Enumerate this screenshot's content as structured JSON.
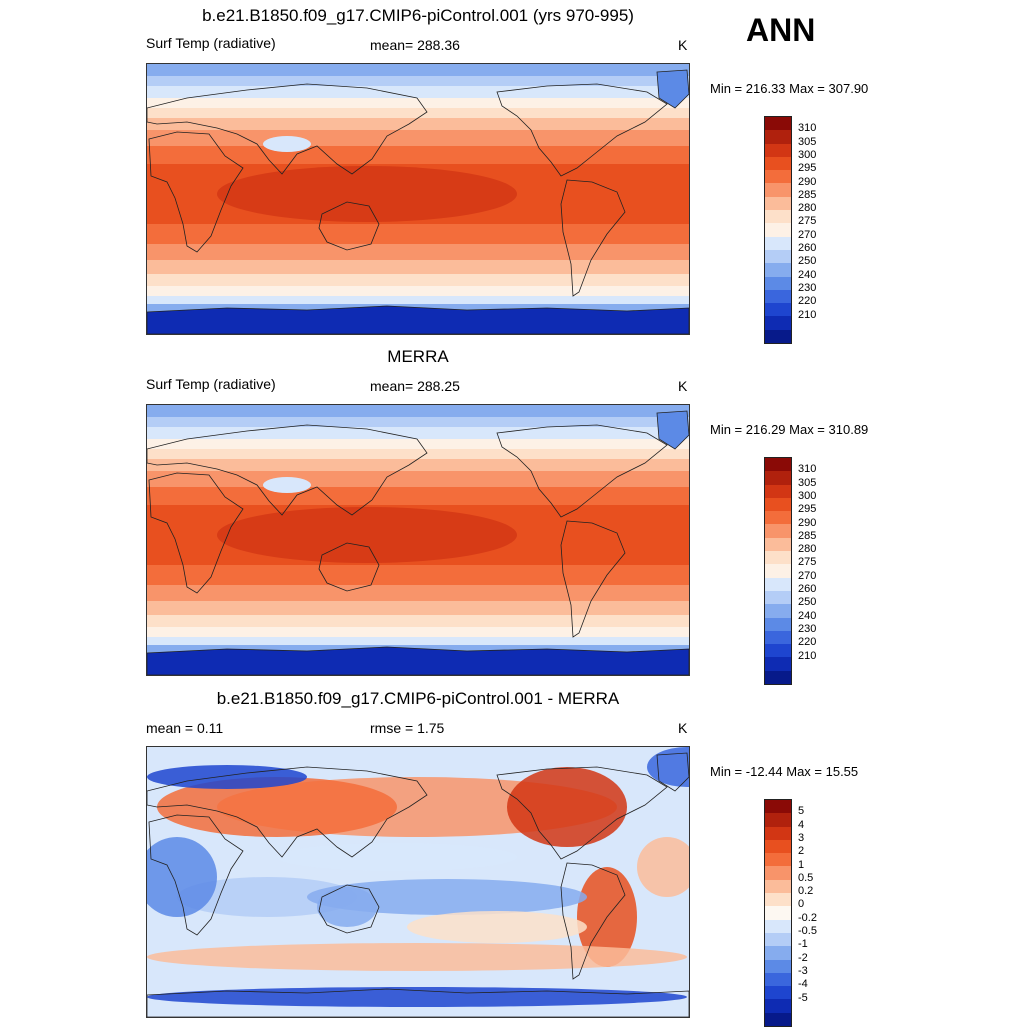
{
  "season": "ANN",
  "panels": [
    {
      "title": "b.e21.B1850.f09_g17.CMIP6-piControl.001 (yrs 970-995)",
      "left_label": "Surf Temp (radiative)",
      "center_label": "mean= 288.36",
      "units": "K",
      "minmax": "Min = 216.33 Max = 307.90",
      "colorbar": {
        "labels": [
          "310",
          "305",
          "300",
          "295",
          "290",
          "285",
          "280",
          "275",
          "270",
          "260",
          "250",
          "240",
          "230",
          "220",
          "210"
        ],
        "colors": [
          "#8a0a06",
          "#b0210d",
          "#d23614",
          "#e8501f",
          "#f36d3b",
          "#f8946a",
          "#fbbc9a",
          "#fde0c9",
          "#fdf1e6",
          "#d8e7fb",
          "#b4cdf6",
          "#86acee",
          "#5c8ae6",
          "#3a66dd",
          "#1e45cf",
          "#0e2bb3",
          "#071a8a"
        ]
      },
      "field_type": "temperature"
    },
    {
      "title": "MERRA",
      "left_label": "Surf Temp (radiative)",
      "center_label": "mean= 288.25",
      "units": "K",
      "minmax": "Min = 216.29 Max = 310.89",
      "colorbar": {
        "labels": [
          "310",
          "305",
          "300",
          "295",
          "290",
          "285",
          "280",
          "275",
          "270",
          "260",
          "250",
          "240",
          "230",
          "220",
          "210"
        ],
        "colors": [
          "#8a0a06",
          "#b0210d",
          "#d23614",
          "#e8501f",
          "#f36d3b",
          "#f8946a",
          "#fbbc9a",
          "#fde0c9",
          "#fdf1e6",
          "#d8e7fb",
          "#b4cdf6",
          "#86acee",
          "#5c8ae6",
          "#3a66dd",
          "#1e45cf",
          "#0e2bb3",
          "#071a8a"
        ]
      },
      "field_type": "temperature"
    },
    {
      "title": "b.e21.B1850.f09_g17.CMIP6-piControl.001 - MERRA",
      "left_label": "mean =   0.11",
      "center_label": "rmse =   1.75",
      "units": "K",
      "minmax": "Min = -12.44 Max =  15.55",
      "colorbar": {
        "labels": [
          "5",
          "4",
          "3",
          "2",
          "1",
          "0.5",
          "0.2",
          "0",
          "-0.2",
          "-0.5",
          "-1",
          "-2",
          "-3",
          "-4",
          "-5"
        ],
        "colors": [
          "#8a0a06",
          "#b0210d",
          "#d23614",
          "#e8501f",
          "#f36d3b",
          "#f8946a",
          "#fbbc9a",
          "#fde0c9",
          "#fdf8f2",
          "#d8e7fb",
          "#b4cdf6",
          "#86acee",
          "#5c8ae6",
          "#3a66dd",
          "#1e45cf",
          "#0e2bb3",
          "#071a8a"
        ]
      },
      "field_type": "difference"
    }
  ]
}
